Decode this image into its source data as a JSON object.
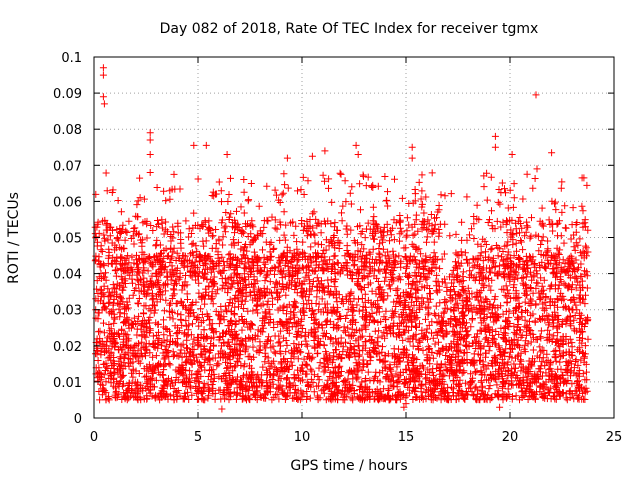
{
  "chart_data": {
    "type": "scatter",
    "title": "Day 082 of 2018, Rate Of TEC Index for receiver tgmx",
    "xlabel": "GPS time / hours",
    "ylabel": "ROTI / TECUs",
    "xlim": [
      0,
      25
    ],
    "ylim": [
      0,
      0.1
    ],
    "xticks": [
      "0",
      "5",
      "10",
      "15",
      "20",
      "25"
    ],
    "yticks": [
      "0",
      "0.01",
      "0.02",
      "0.03",
      "0.04",
      "0.05",
      "0.06",
      "0.07",
      "0.08",
      "0.09",
      "0.1"
    ],
    "grid": true,
    "marker": "+",
    "series_color": "#ff0000",
    "x_extent_hours": [
      0.05,
      23.75
    ],
    "typical_range": [
      0.005,
      0.045
    ],
    "outliers": [
      {
        "x": 0.45,
        "y": 0.097
      },
      {
        "x": 0.45,
        "y": 0.095
      },
      {
        "x": 0.45,
        "y": 0.089
      },
      {
        "x": 0.5,
        "y": 0.087
      },
      {
        "x": 2.7,
        "y": 0.079
      },
      {
        "x": 2.7,
        "y": 0.077
      },
      {
        "x": 2.7,
        "y": 0.073
      },
      {
        "x": 2.7,
        "y": 0.068
      },
      {
        "x": 4.8,
        "y": 0.0755
      },
      {
        "x": 5.4,
        "y": 0.0755
      },
      {
        "x": 6.4,
        "y": 0.073
      },
      {
        "x": 9.3,
        "y": 0.072
      },
      {
        "x": 10.5,
        "y": 0.0725
      },
      {
        "x": 11.1,
        "y": 0.074
      },
      {
        "x": 12.6,
        "y": 0.0755
      },
      {
        "x": 12.7,
        "y": 0.073
      },
      {
        "x": 15.3,
        "y": 0.075
      },
      {
        "x": 15.3,
        "y": 0.072
      },
      {
        "x": 19.3,
        "y": 0.078
      },
      {
        "x": 19.3,
        "y": 0.075
      },
      {
        "x": 20.1,
        "y": 0.073
      },
      {
        "x": 21.25,
        "y": 0.0895
      },
      {
        "x": 21.3,
        "y": 0.069
      },
      {
        "x": 22.0,
        "y": 0.0735
      },
      {
        "x": 14.9,
        "y": 0.003
      },
      {
        "x": 15.0,
        "y": 0.004
      },
      {
        "x": 6.15,
        "y": 0.0025
      },
      {
        "x": 19.5,
        "y": 0.003
      }
    ]
  }
}
